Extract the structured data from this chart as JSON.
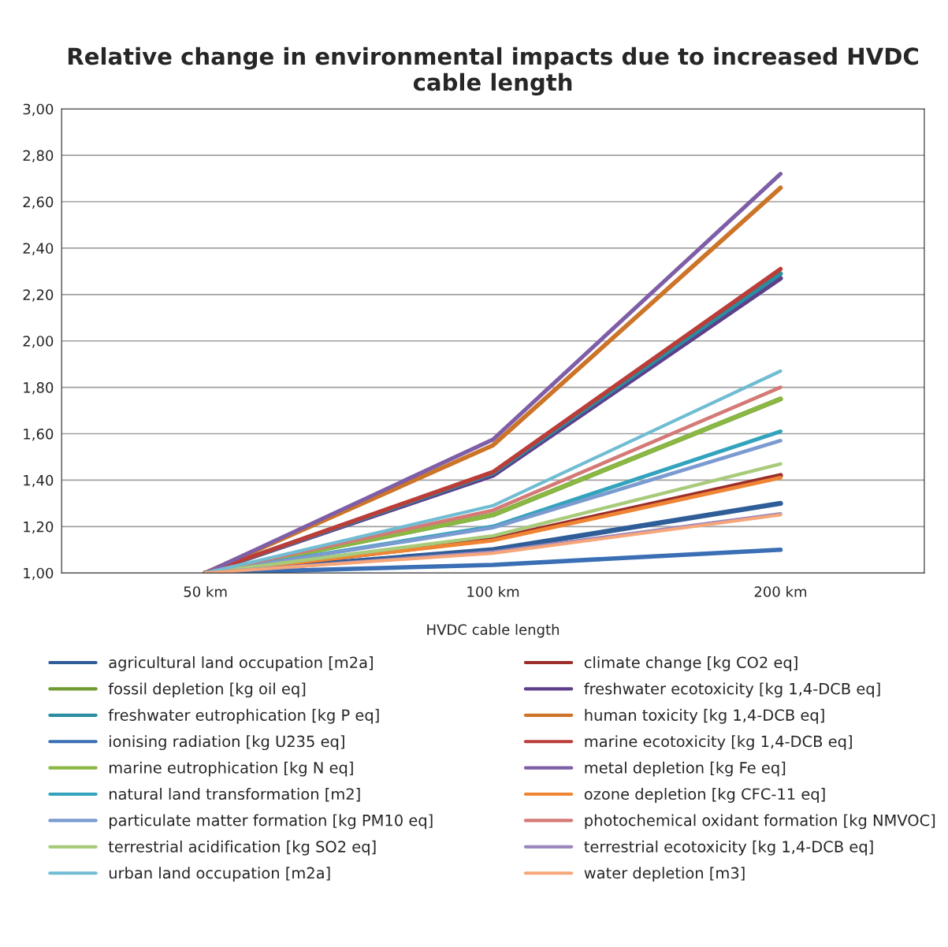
{
  "chart_data": {
    "type": "line",
    "title": "Relative change in environmental impacts due to increased HVDC cable length",
    "xlabel": "HVDC cable length",
    "categories": [
      "50 km",
      "100 km",
      "200 km"
    ],
    "ylim": [
      1.0,
      3.0
    ],
    "yticks": [
      {
        "value": 1.0,
        "label": "1,00"
      },
      {
        "value": 1.2,
        "label": "1,20"
      },
      {
        "value": 1.4,
        "label": "1,40"
      },
      {
        "value": 1.6,
        "label": "1,60"
      },
      {
        "value": 1.8,
        "label": "1,80"
      },
      {
        "value": 2.0,
        "label": "2,00"
      },
      {
        "value": 2.2,
        "label": "2,20"
      },
      {
        "value": 2.4,
        "label": "2,40"
      },
      {
        "value": 2.6,
        "label": "2,60"
      },
      {
        "value": 2.8,
        "label": "2,80"
      },
      {
        "value": 3.0,
        "label": "3,00"
      }
    ],
    "grid": "y",
    "legend": "bottom",
    "marker": "none",
    "line_style": "solid",
    "series": [
      {
        "name": "agricultural land occupation [m2a]",
        "color": "#2f5d97",
        "values": [
          1.0,
          1.1,
          1.3
        ]
      },
      {
        "name": "climate change [kg CO2 eq]",
        "color": "#9b2d2a",
        "values": [
          1.0,
          1.145,
          1.42
        ]
      },
      {
        "name": "fossil depletion [kg oil eq]",
        "color": "#6f9a2f",
        "values": [
          1.0,
          1.25,
          1.75
        ]
      },
      {
        "name": "freshwater ecotoxicity [kg 1,4-DCB eq]",
        "color": "#5e3f8c",
        "values": [
          1.0,
          1.42,
          2.27
        ]
      },
      {
        "name": "freshwater eutrophication [kg P eq]",
        "color": "#2a8da0",
        "values": [
          1.0,
          1.43,
          2.29
        ]
      },
      {
        "name": "human toxicity [kg 1,4-DCB eq]",
        "color": "#cc7428",
        "values": [
          1.0,
          1.55,
          2.66
        ]
      },
      {
        "name": "ionising radiation [kg U235 eq]",
        "color": "#3a6fb5",
        "values": [
          1.0,
          1.035,
          1.1
        ]
      },
      {
        "name": "marine ecotoxicity [kg 1,4-DCB eq]",
        "color": "#bb3d39",
        "values": [
          1.0,
          1.435,
          2.31
        ]
      },
      {
        "name": "marine eutrophication [kg N eq]",
        "color": "#8ab843",
        "values": [
          1.0,
          1.25,
          1.75
        ]
      },
      {
        "name": "metal depletion [kg Fe eq]",
        "color": "#7f5ea8",
        "values": [
          1.0,
          1.575,
          2.72
        ]
      },
      {
        "name": "natural land transformation [m2]",
        "color": "#33a3bd",
        "values": [
          1.0,
          1.2,
          1.61
        ]
      },
      {
        "name": "ozone depletion [kg CFC-11 eq]",
        "color": "#ef8534",
        "values": [
          1.0,
          1.14,
          1.41
        ]
      },
      {
        "name": "particulate matter formation [kg PM10 eq]",
        "color": "#7b9bd0",
        "values": [
          1.0,
          1.195,
          1.57
        ]
      },
      {
        "name": "photochemical oxidant formation [kg NMVOC]",
        "color": "#d47a76",
        "values": [
          1.0,
          1.27,
          1.8
        ]
      },
      {
        "name": "terrestrial acidification [kg SO2 eq]",
        "color": "#a7cb7a",
        "values": [
          1.0,
          1.16,
          1.47
        ]
      },
      {
        "name": "terrestrial ecotoxicity [kg 1,4-DCB eq]",
        "color": "#9c88bf",
        "values": [
          1.0,
          1.09,
          1.255
        ]
      },
      {
        "name": "urban land occupation [m2a]",
        "color": "#6fbcd3",
        "values": [
          1.0,
          1.29,
          1.87
        ]
      },
      {
        "name": "water depletion [m3]",
        "color": "#f6a678",
        "values": [
          1.0,
          1.085,
          1.25
        ]
      }
    ]
  }
}
